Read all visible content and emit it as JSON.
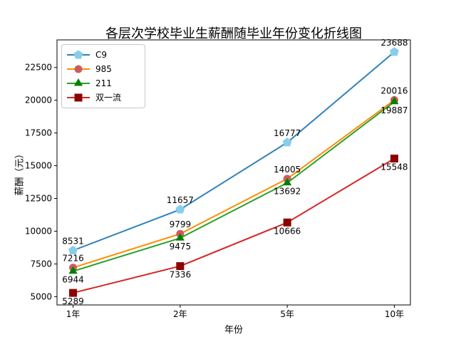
{
  "title": "各层次学校毕业生薪酬随毕业年份变化折线图",
  "chart_data": {
    "type": "line",
    "categories": [
      "1年",
      "2年",
      "5年",
      "10年"
    ],
    "xlabel": "年份",
    "ylabel": "薪酬（元）",
    "xlim": [
      -0.15,
      3.15
    ],
    "ylim": [
      4369,
      24608
    ],
    "y_ticks": [
      5000,
      7500,
      10000,
      12500,
      15000,
      17500,
      20000,
      22500
    ],
    "grid": false,
    "legend_position": "upper-left",
    "series": [
      {
        "name": "C9",
        "values": [
          8531,
          11657,
          16777,
          23688
        ],
        "line_color": "#3182bd",
        "marker": "pentagon",
        "marker_color": "#87ceeb",
        "label_side": "above"
      },
      {
        "name": "985",
        "values": [
          7216,
          9799,
          14005,
          20016
        ],
        "line_color": "#ff8c00",
        "marker": "circle",
        "marker_color": "#cd5c5c",
        "label_side": "above"
      },
      {
        "name": "211",
        "values": [
          6944,
          9475,
          13692,
          19887
        ],
        "line_color": "#2ca02c",
        "marker": "triangle",
        "marker_color": "#008000",
        "label_side": "below"
      },
      {
        "name": "双一流",
        "values": [
          5289,
          7336,
          10666,
          15548
        ],
        "line_color": "#d62728",
        "marker": "square",
        "marker_color": "#8b0000",
        "label_side": "below"
      }
    ]
  }
}
